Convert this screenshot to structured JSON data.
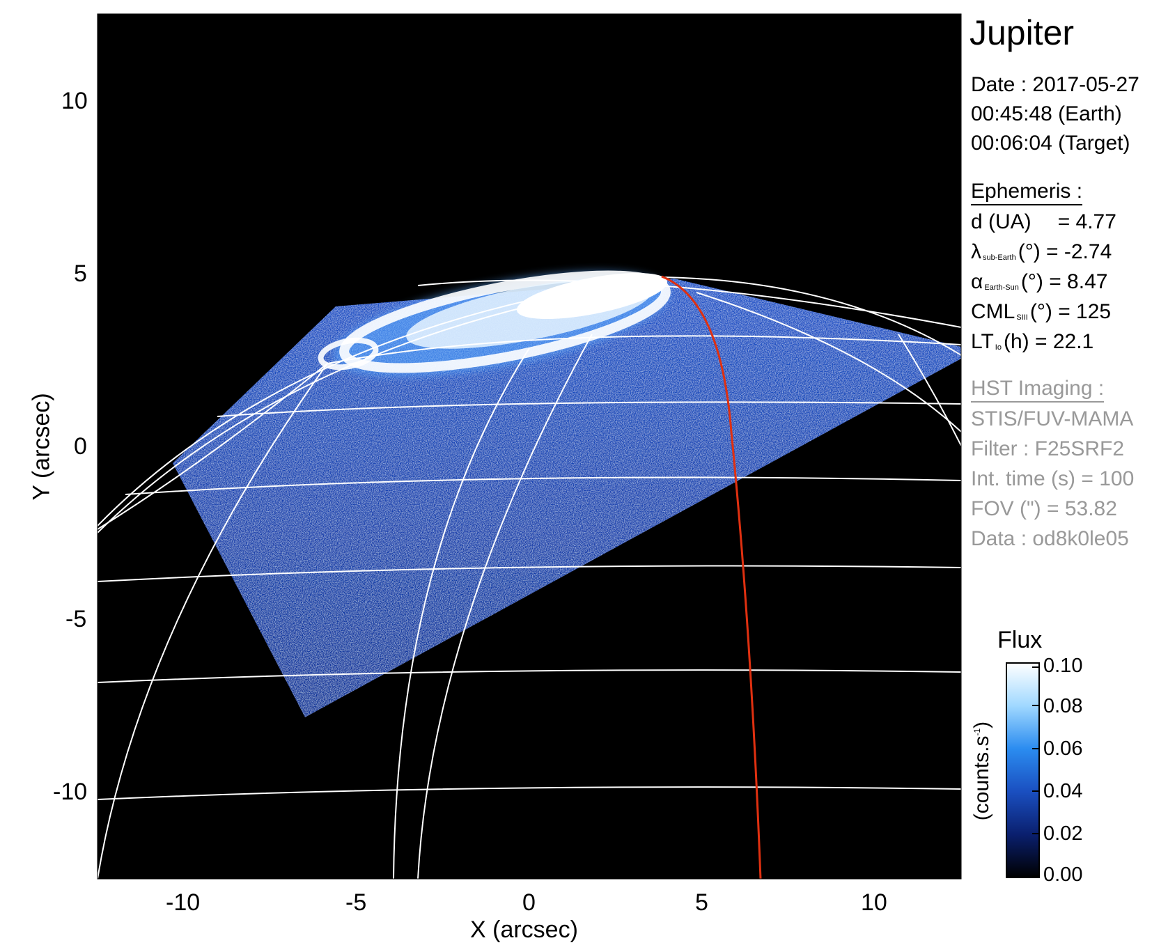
{
  "planet": "Jupiter",
  "date_label": "Date :",
  "date": "2017-05-27",
  "time_earth": "00:45:48 (Earth)",
  "time_target": "00:06:04 (Target)",
  "ephemeris": {
    "header": "Ephemeris :",
    "distance": {
      "label": "d (UA)",
      "value": "= 4.77"
    },
    "lat_sub_earth": {
      "symbol": "λ",
      "subscript": "sub-Earth",
      "unit": "(°)",
      "value": "= -2.74"
    },
    "phase_angle": {
      "symbol": "α",
      "subscript": "Earth-Sun",
      "unit": "(°)",
      "value": "= 8.47"
    },
    "cml": {
      "symbol": "CML",
      "subscript": "SIII",
      "unit": "(°)",
      "value": "= 125"
    },
    "lt_io": {
      "symbol": "LT",
      "subscript": "Io",
      "unit": "(h)",
      "value": "= 22.1"
    }
  },
  "hst": {
    "header": "HST Imaging :",
    "instrument": "STIS/FUV-MAMA",
    "filter": "Filter : F25SRF2",
    "int_time": "Int. time (s) = 100",
    "fov": "FOV (\") = 53.82",
    "data": "Data : od8k0le05"
  },
  "colorbar": {
    "title": "Flux",
    "label": "(counts.s",
    "label_sup": "-1",
    "label_end": ")",
    "ticks": [
      "0.10",
      "0.08",
      "0.06",
      "0.04",
      "0.02",
      "0.00"
    ],
    "colors": [
      "#ffffff",
      "#a0d8ff",
      "#2b8cf0",
      "#1a4fc0",
      "#0a1f6e",
      "#000000"
    ]
  },
  "axes": {
    "xlabel": "X (arcsec)",
    "ylabel": "Y (arcsec)",
    "xlim": [
      -12.5,
      12.5
    ],
    "ylim": [
      -12.5,
      12.5
    ],
    "xticks": [
      "-10",
      "-5",
      "0",
      "5",
      "10"
    ],
    "yticks": [
      "10",
      "5",
      "0",
      "-5",
      "-10"
    ]
  },
  "colors": {
    "background": "#000000",
    "grid": "#ffffff",
    "highlight_meridian": "#e03010"
  }
}
